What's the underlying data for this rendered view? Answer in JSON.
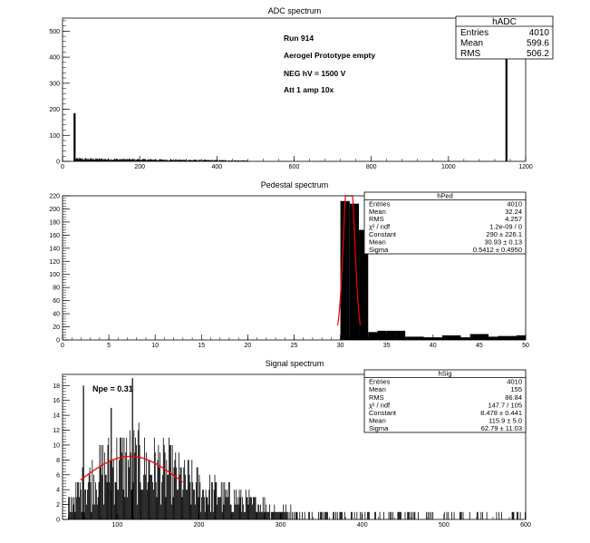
{
  "chart_data": [
    {
      "type": "histogram",
      "title": "ADC spectrum",
      "xlim": [
        0,
        1200
      ],
      "ylim": [
        0,
        550
      ],
      "xticks": [
        0,
        200,
        400,
        600,
        800,
        1000,
        1200
      ],
      "yticks": [
        0,
        100,
        200,
        300,
        400,
        500
      ],
      "annotations": [
        "Run  914",
        "Aerogel Prototype empty",
        "NEG hV = 1500 V",
        "Att 1 amp 10x"
      ],
      "stats": {
        "name": "hADC",
        "rows": [
          {
            "label": "Entries",
            "value": "4010"
          },
          {
            "label": "Mean",
            "value": "599.6"
          },
          {
            "label": "RMS",
            "value": "506.2"
          }
        ]
      },
      "peaks": [
        {
          "x": 31,
          "y": 185
        },
        {
          "x": 1150,
          "y": 455
        }
      ],
      "noise_region": {
        "x_start": 33,
        "x_end": 480,
        "max_y": 12,
        "mean_y": 3
      }
    },
    {
      "type": "histogram",
      "title": "Pedestal spectrum",
      "xlim": [
        0,
        50
      ],
      "ylim": [
        0,
        220
      ],
      "xticks": [
        0,
        5,
        10,
        15,
        20,
        25,
        30,
        35,
        40,
        45,
        50
      ],
      "yticks": [
        0,
        20,
        40,
        60,
        80,
        100,
        120,
        140,
        160,
        180,
        200,
        220
      ],
      "bins": [
        {
          "x": 30,
          "y": 212
        },
        {
          "x": 31,
          "y": 208
        },
        {
          "x": 32,
          "y": 168
        },
        {
          "x": 33,
          "y": 12
        },
        {
          "x": 34,
          "y": 14
        },
        {
          "x": 35,
          "y": 14
        },
        {
          "x": 36,
          "y": 14
        },
        {
          "x": 37,
          "y": 5
        },
        {
          "x": 38,
          "y": 5
        },
        {
          "x": 39,
          "y": 4
        },
        {
          "x": 40,
          "y": 4
        },
        {
          "x": 41,
          "y": 7
        },
        {
          "x": 42,
          "y": 7
        },
        {
          "x": 43,
          "y": 4
        },
        {
          "x": 44,
          "y": 9
        },
        {
          "x": 45,
          "y": 9
        },
        {
          "x": 46,
          "y": 5
        },
        {
          "x": 47,
          "y": 6
        },
        {
          "x": 48,
          "y": 6
        },
        {
          "x": 49,
          "y": 7
        }
      ],
      "fit": {
        "type": "gaussian",
        "constant": 290,
        "mean": 30.93,
        "sigma": 0.5412,
        "color": "#ff0000"
      },
      "stats": {
        "name": "hPed",
        "rows": [
          {
            "label": "Entries",
            "value": "4010"
          },
          {
            "label": "Mean",
            "value": "32.24"
          },
          {
            "label": "RMS",
            "value": "4.257"
          },
          {
            "label": "χ² / ndf",
            "value": "1.2e-09 / 0"
          },
          {
            "label": "Constant",
            "value": "290 ± 226.1"
          },
          {
            "label": "Mean",
            "value": "30.93 ± 0.13"
          },
          {
            "label": "Sigma",
            "value": "0.5412 ± 0.4950"
          }
        ]
      }
    },
    {
      "type": "histogram",
      "title": "Signal spectrum",
      "xlim": [
        33,
        600
      ],
      "ylim": [
        0,
        19.5
      ],
      "xticks": [
        100,
        200,
        300,
        400,
        500,
        600
      ],
      "yticks": [
        0,
        2,
        4,
        6,
        8,
        10,
        12,
        14,
        16,
        18
      ],
      "annotation": "Npe = 0.31",
      "envelope": [
        {
          "x": 40,
          "y": 3
        },
        {
          "x": 60,
          "y": 8
        },
        {
          "x": 80,
          "y": 11
        },
        {
          "x": 100,
          "y": 13
        },
        {
          "x": 120,
          "y": 13
        },
        {
          "x": 140,
          "y": 12
        },
        {
          "x": 160,
          "y": 11
        },
        {
          "x": 180,
          "y": 9
        },
        {
          "x": 200,
          "y": 7
        },
        {
          "x": 220,
          "y": 6
        },
        {
          "x": 240,
          "y": 5
        },
        {
          "x": 260,
          "y": 4
        },
        {
          "x": 280,
          "y": 3
        },
        {
          "x": 300,
          "y": 2
        },
        {
          "x": 340,
          "y": 1
        },
        {
          "x": 400,
          "y": 1
        },
        {
          "x": 500,
          "y": 1
        },
        {
          "x": 600,
          "y": 1
        }
      ],
      "highlight_bins": [
        {
          "x": 58,
          "y": 18
        },
        {
          "x": 118,
          "y": 19
        },
        {
          "x": 92,
          "y": 15
        }
      ],
      "fit": {
        "type": "gaussian",
        "constant": 8.478,
        "mean": 115.9,
        "sigma": 62.79,
        "x_start": 55,
        "x_end": 180,
        "color": "#ff0000"
      },
      "stats": {
        "name": "hSig",
        "rows": [
          {
            "label": "Entries",
            "value": "4010"
          },
          {
            "label": "Mean",
            "value": "155"
          },
          {
            "label": "RMS",
            "value": "86.84"
          },
          {
            "label": "χ² / ndf",
            "value": "147.7 / 105"
          },
          {
            "label": "Constant",
            "value": "8.478 ± 0.441"
          },
          {
            "label": "Mean",
            "value": "115.9 ± 5.0"
          },
          {
            "label": "Sigma",
            "value": "62.79 ± 11.03"
          }
        ]
      }
    }
  ]
}
